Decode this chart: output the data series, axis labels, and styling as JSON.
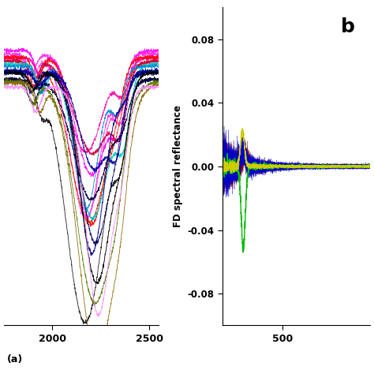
{
  "left_panel": {
    "x_range": [
      1750,
      2550
    ],
    "x_ticks": [
      2000,
      2500
    ],
    "x_label": "(a)",
    "y_range": [
      -1.1,
      0.15
    ],
    "colors_top": [
      "#FF00FF",
      "#FF00FF",
      "#FF00FF",
      "#FF1177",
      "#FF0000",
      "#FF4400",
      "#00AAAA",
      "#0000CC",
      "#000099",
      "#000000",
      "#222222",
      "#330033",
      "#008800",
      "#886600",
      "#FF00FF",
      "#FF44FF",
      "#FF88FF",
      "#FFAAFF"
    ],
    "num_series": 18
  },
  "right_panel": {
    "x_range": [
      350,
      720
    ],
    "x_ticks": [
      500
    ],
    "x_label": "",
    "y_range": [
      -0.1,
      0.1
    ],
    "y_ticks": [
      -0.08,
      -0.04,
      0.0,
      0.04,
      0.08
    ],
    "y_label": "FD spectral reflectance",
    "panel_label": "b"
  },
  "background_color": "#ffffff",
  "figure_width": 4.74,
  "figure_height": 4.74
}
